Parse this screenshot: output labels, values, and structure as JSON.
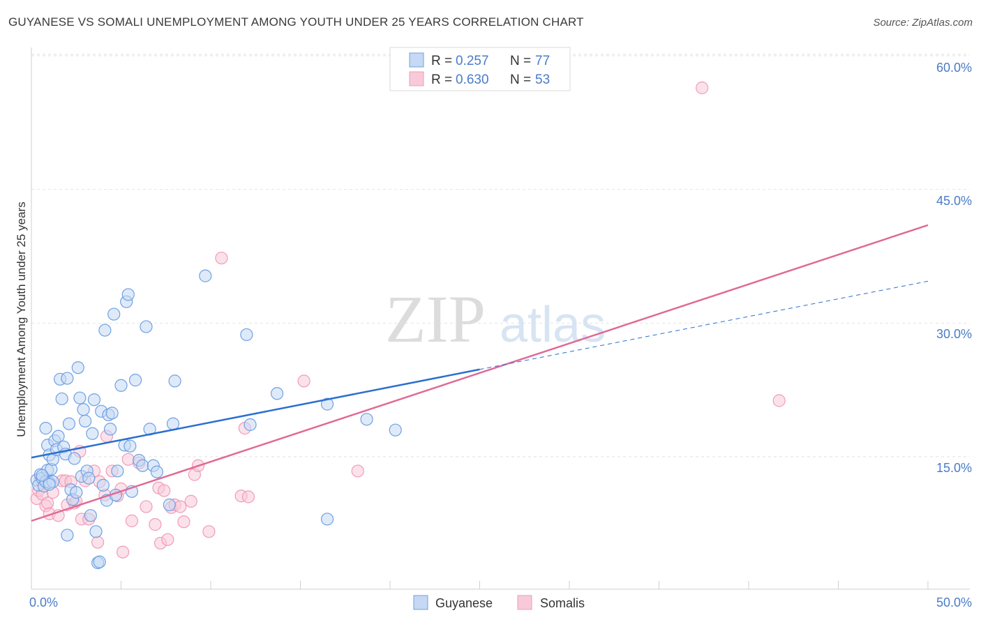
{
  "header": {
    "title": "GUYANESE VS SOMALI UNEMPLOYMENT AMONG YOUTH UNDER 25 YEARS CORRELATION CHART",
    "source": "Source: ZipAtlas.com"
  },
  "watermark": {
    "zip": "ZIP",
    "atlas": "atlas"
  },
  "chart_data": {
    "type": "scatter",
    "title": "GUYANESE VS SOMALI UNEMPLOYMENT AMONG YOUTH UNDER 25 YEARS CORRELATION CHART",
    "xlabel": "",
    "ylabel": "Unemployment Among Youth under 25 years",
    "xlim": [
      0,
      50
    ],
    "ylim": [
      0,
      63
    ],
    "x_tick_labels": [
      "0.0%",
      "50.0%"
    ],
    "y_ticks": [
      15,
      30,
      45,
      60
    ],
    "y_tick_labels": [
      "15.0%",
      "30.0%",
      "45.0%",
      "60.0%"
    ],
    "grid": true,
    "colors": {
      "guyanese": "#6fa0e3",
      "somalis": "#f19bb8",
      "guyanese_line": "#2b6fd0",
      "somalis_line": "#e06a95"
    },
    "stats": [
      {
        "r_label": "R =",
        "r_value": "0.257",
        "n_label": "N =",
        "n_value": "77"
      },
      {
        "r_label": "R =",
        "r_value": "0.630",
        "n_label": "N =",
        "n_value": "53"
      }
    ],
    "legend": [
      "Guyanese",
      "Somalis"
    ],
    "series": [
      {
        "name": "Guyanese",
        "trend": {
          "x0": 0,
          "y0": 14.9,
          "x1": 25,
          "y1": 24.8,
          "dash_to_x": 50,
          "dash_to_y": 34.7
        },
        "points": [
          [
            0.3,
            12.4
          ],
          [
            0.4,
            11.8
          ],
          [
            0.5,
            13.0
          ],
          [
            0.6,
            12.6
          ],
          [
            0.7,
            11.7
          ],
          [
            0.8,
            12.2
          ],
          [
            0.9,
            13.5
          ],
          [
            1.0,
            12.1
          ],
          [
            0.8,
            18.2
          ],
          [
            0.9,
            16.3
          ],
          [
            1.0,
            15.2
          ],
          [
            1.1,
            13.6
          ],
          [
            1.2,
            14.7
          ],
          [
            1.2,
            12.2
          ],
          [
            1.3,
            16.8
          ],
          [
            1.4,
            15.8
          ],
          [
            1.5,
            17.3
          ],
          [
            1.6,
            23.7
          ],
          [
            1.7,
            21.5
          ],
          [
            1.8,
            16.1
          ],
          [
            1.9,
            15.3
          ],
          [
            2.0,
            23.8
          ],
          [
            2.1,
            18.7
          ],
          [
            2.0,
            6.2
          ],
          [
            2.2,
            11.3
          ],
          [
            2.3,
            10.2
          ],
          [
            2.4,
            14.8
          ],
          [
            2.5,
            11.0
          ],
          [
            2.6,
            25.0
          ],
          [
            2.7,
            21.6
          ],
          [
            2.8,
            12.8
          ],
          [
            2.9,
            20.3
          ],
          [
            3.0,
            19.0
          ],
          [
            3.1,
            13.4
          ],
          [
            3.2,
            12.6
          ],
          [
            3.3,
            8.4
          ],
          [
            3.4,
            17.6
          ],
          [
            3.5,
            21.4
          ],
          [
            3.6,
            6.6
          ],
          [
            3.7,
            3.1
          ],
          [
            3.8,
            3.2
          ],
          [
            3.9,
            20.1
          ],
          [
            4.0,
            11.8
          ],
          [
            4.1,
            29.2
          ],
          [
            4.2,
            10.1
          ],
          [
            4.3,
            19.7
          ],
          [
            4.4,
            18.1
          ],
          [
            4.5,
            19.9
          ],
          [
            4.6,
            31.0
          ],
          [
            4.7,
            10.7
          ],
          [
            4.8,
            13.4
          ],
          [
            5.0,
            23.0
          ],
          [
            5.2,
            16.3
          ],
          [
            5.3,
            32.4
          ],
          [
            5.4,
            33.2
          ],
          [
            5.5,
            16.2
          ],
          [
            5.6,
            11.1
          ],
          [
            5.8,
            23.6
          ],
          [
            6.0,
            14.6
          ],
          [
            6.2,
            14.0
          ],
          [
            6.4,
            29.6
          ],
          [
            6.6,
            18.1
          ],
          [
            6.8,
            14.0
          ],
          [
            7.0,
            13.3
          ],
          [
            7.7,
            9.6
          ],
          [
            7.9,
            18.7
          ],
          [
            8.0,
            23.5
          ],
          [
            9.7,
            35.3
          ],
          [
            12.0,
            28.7
          ],
          [
            12.2,
            18.6
          ],
          [
            13.7,
            22.1
          ],
          [
            16.5,
            20.9
          ],
          [
            16.5,
            8.0
          ],
          [
            18.7,
            19.2
          ],
          [
            20.3,
            18.0
          ],
          [
            0.6,
            12.9
          ],
          [
            1.0,
            11.9
          ]
        ]
      },
      {
        "name": "Somalis",
        "trend": {
          "x0": 0,
          "y0": 7.8,
          "x1": 50,
          "y1": 41.0
        },
        "points": [
          [
            0.3,
            10.3
          ],
          [
            0.4,
            11.2
          ],
          [
            0.5,
            12.5
          ],
          [
            0.6,
            10.8
          ],
          [
            0.8,
            9.5
          ],
          [
            0.9,
            9.8
          ],
          [
            1.0,
            8.6
          ],
          [
            1.2,
            11.0
          ],
          [
            1.5,
            8.4
          ],
          [
            1.7,
            12.3
          ],
          [
            1.9,
            12.3
          ],
          [
            2.0,
            9.6
          ],
          [
            2.2,
            12.2
          ],
          [
            2.4,
            9.8
          ],
          [
            2.5,
            10.0
          ],
          [
            2.7,
            15.6
          ],
          [
            2.8,
            8.0
          ],
          [
            3.0,
            12.3
          ],
          [
            3.2,
            8.0
          ],
          [
            3.5,
            13.4
          ],
          [
            3.7,
            5.4
          ],
          [
            3.8,
            12.2
          ],
          [
            4.1,
            10.7
          ],
          [
            4.2,
            17.3
          ],
          [
            4.5,
            13.4
          ],
          [
            4.8,
            10.6
          ],
          [
            5.0,
            11.4
          ],
          [
            5.1,
            4.3
          ],
          [
            5.4,
            14.7
          ],
          [
            5.6,
            7.8
          ],
          [
            6.0,
            14.3
          ],
          [
            6.4,
            9.4
          ],
          [
            6.9,
            7.4
          ],
          [
            7.1,
            11.5
          ],
          [
            7.2,
            5.3
          ],
          [
            7.4,
            11.2
          ],
          [
            7.6,
            5.7
          ],
          [
            7.8,
            9.3
          ],
          [
            8.0,
            9.6
          ],
          [
            8.3,
            9.4
          ],
          [
            8.5,
            7.7
          ],
          [
            8.9,
            10.0
          ],
          [
            9.1,
            13.0
          ],
          [
            9.3,
            14.0
          ],
          [
            9.9,
            6.6
          ],
          [
            10.6,
            37.3
          ],
          [
            11.7,
            10.6
          ],
          [
            11.9,
            18.2
          ],
          [
            12.1,
            10.5
          ],
          [
            15.2,
            23.5
          ],
          [
            18.2,
            13.4
          ],
          [
            37.4,
            56.4
          ],
          [
            41.7,
            21.3
          ]
        ]
      }
    ]
  }
}
